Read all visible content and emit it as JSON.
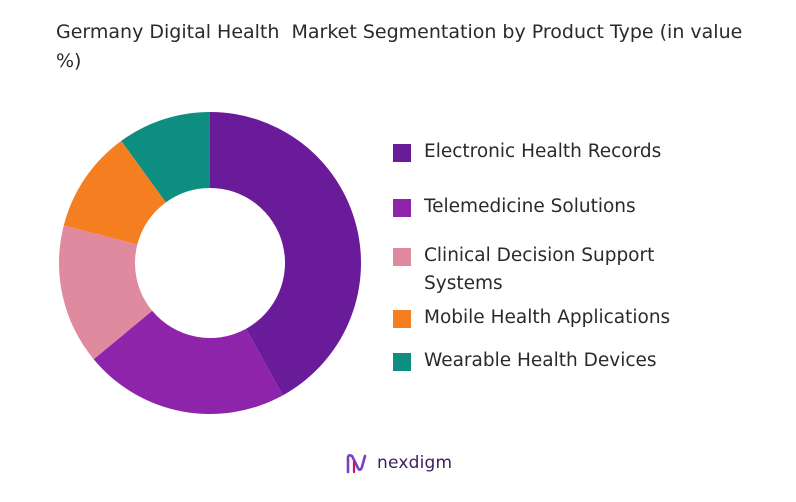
{
  "title": "Germany Digital Health  Market Segmentation by Product Type (in value %)",
  "chart_data": {
    "type": "pie",
    "donut": true,
    "title": "Germany Digital Health  Market Segmentation by Product Type (in value %)",
    "categories": [
      "Electronic Health Records",
      "Telemedicine Solutions",
      "Clinical Decision Support Systems",
      "Mobile Health Applications",
      "Wearable Health Devices"
    ],
    "values": [
      42,
      22,
      15,
      11,
      10
    ],
    "colors": [
      "#6a1b9a",
      "#8e24aa",
      "#e08aa0",
      "#f57f20",
      "#0e8e80"
    ],
    "legend_position": "right"
  },
  "legend": [
    {
      "label": "Electronic Health Records",
      "color": "#6a1b9a"
    },
    {
      "label": "Telemedicine Solutions",
      "color": "#8e24aa"
    },
    {
      "label": "Clinical Decision Support Systems",
      "color": "#e08aa0"
    },
    {
      "label": "Mobile Health Applications",
      "color": "#f57f20"
    },
    {
      "label": "Wearable Health Devices",
      "color": "#0e8e80"
    }
  ],
  "brand": {
    "name": "nexdigm",
    "icon": "nexdigm-logo-icon"
  }
}
